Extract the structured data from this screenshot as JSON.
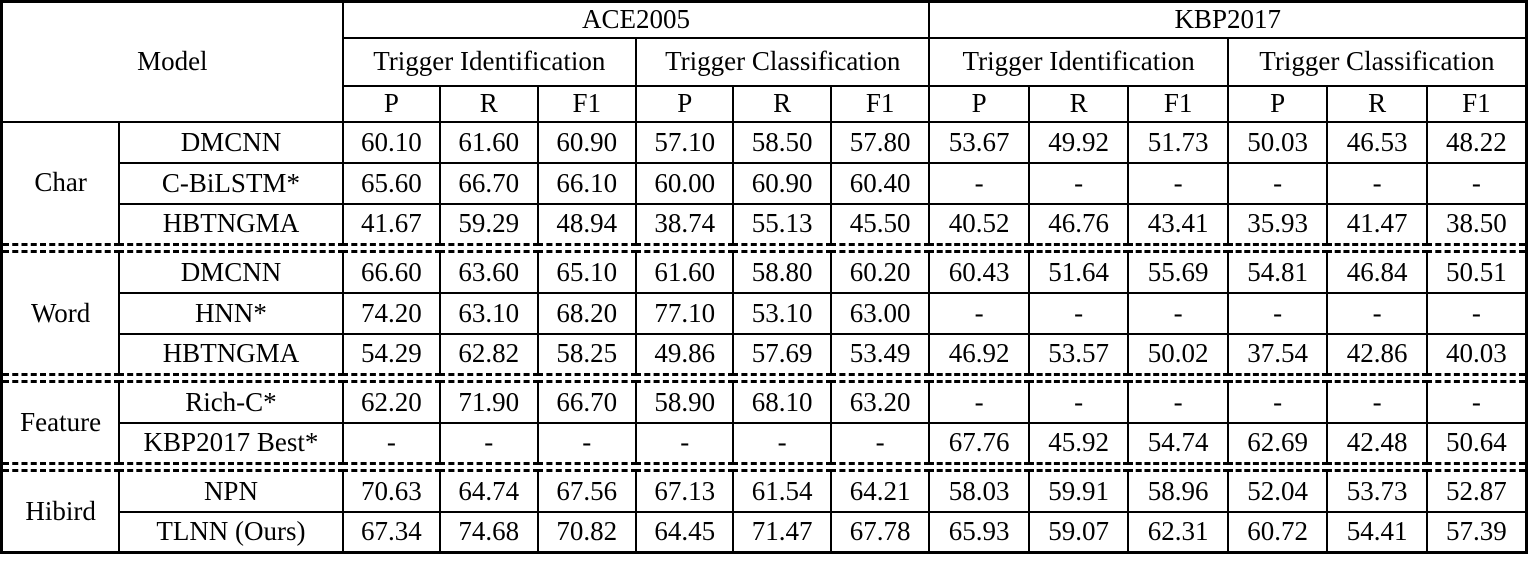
{
  "colors": {
    "background": "#ffffff",
    "text": "#000000",
    "border": "#000000"
  },
  "table": {
    "header": {
      "model_label": "Model",
      "datasets": [
        "ACE2005",
        "KBP2017"
      ],
      "subheaders": [
        "Trigger Identification",
        "Trigger Classification"
      ],
      "metrics": [
        "P",
        "R",
        "F1"
      ]
    },
    "groups": [
      {
        "name": "Char",
        "rows": [
          {
            "model": "DMCNN",
            "model_bold": false,
            "values": [
              "60.10",
              "61.60",
              "60.90",
              "57.10",
              "58.50",
              "57.80",
              "53.67",
              "49.92",
              "51.73",
              "50.03",
              "46.53",
              "48.22"
            ],
            "bold": []
          },
          {
            "model": "C-BiLSTM*",
            "model_bold": false,
            "values": [
              "65.60",
              "66.70",
              "66.10",
              "60.00",
              "60.90",
              "60.40",
              "-",
              "-",
              "-",
              "-",
              "-",
              "-"
            ],
            "bold": []
          },
          {
            "model": "HBTNGMA",
            "model_bold": false,
            "values": [
              "41.67",
              "59.29",
              "48.94",
              "38.74",
              "55.13",
              "45.50",
              "40.52",
              "46.76",
              "43.41",
              "35.93",
              "41.47",
              "38.50"
            ],
            "bold": []
          }
        ]
      },
      {
        "name": "Word",
        "rows": [
          {
            "model": "DMCNN",
            "model_bold": false,
            "values": [
              "66.60",
              "63.60",
              "65.10",
              "61.60",
              "58.80",
              "60.20",
              "60.43",
              "51.64",
              "55.69",
              "54.81",
              "46.84",
              "50.51"
            ],
            "bold": []
          },
          {
            "model": "HNN*",
            "model_bold": false,
            "values": [
              "74.20",
              "63.10",
              "68.20",
              "77.10",
              "53.10",
              "63.00",
              "-",
              "-",
              "-",
              "-",
              "-",
              "-"
            ],
            "bold": [
              0,
              3
            ]
          },
          {
            "model": "HBTNGMA",
            "model_bold": false,
            "values": [
              "54.29",
              "62.82",
              "58.25",
              "49.86",
              "57.69",
              "53.49",
              "46.92",
              "53.57",
              "50.02",
              "37.54",
              "42.86",
              "40.03"
            ],
            "bold": []
          }
        ]
      },
      {
        "name": "Feature",
        "rows": [
          {
            "model": "Rich-C*",
            "model_bold": false,
            "values": [
              "62.20",
              "71.90",
              "66.70",
              "58.90",
              "68.10",
              "63.20",
              "-",
              "-",
              "-",
              "-",
              "-",
              "-"
            ],
            "bold": []
          },
          {
            "model": "KBP2017 Best*",
            "model_bold": false,
            "values": [
              "-",
              "-",
              "-",
              "-",
              "-",
              "-",
              "67.76",
              "45.92",
              "54.74",
              "62.69",
              "42.48",
              "50.64"
            ],
            "bold": [
              6,
              9
            ]
          }
        ]
      },
      {
        "name": "Hibird",
        "rows": [
          {
            "model": "NPN",
            "model_bold": false,
            "values": [
              "70.63",
              "64.74",
              "67.56",
              "67.13",
              "61.54",
              "64.21",
              "58.03",
              "59.91",
              "58.96",
              "52.04",
              "53.73",
              "52.87"
            ],
            "bold": [
              7
            ]
          },
          {
            "model": "TLNN (Ours)",
            "model_bold": true,
            "values": [
              "67.34",
              "74.68",
              "70.82",
              "64.45",
              "71.47",
              "67.78",
              "65.93",
              "59.07",
              "62.31",
              "60.72",
              "54.41",
              "57.39"
            ],
            "bold": [
              1,
              2,
              4,
              5,
              8,
              10,
              11
            ]
          }
        ]
      }
    ]
  }
}
